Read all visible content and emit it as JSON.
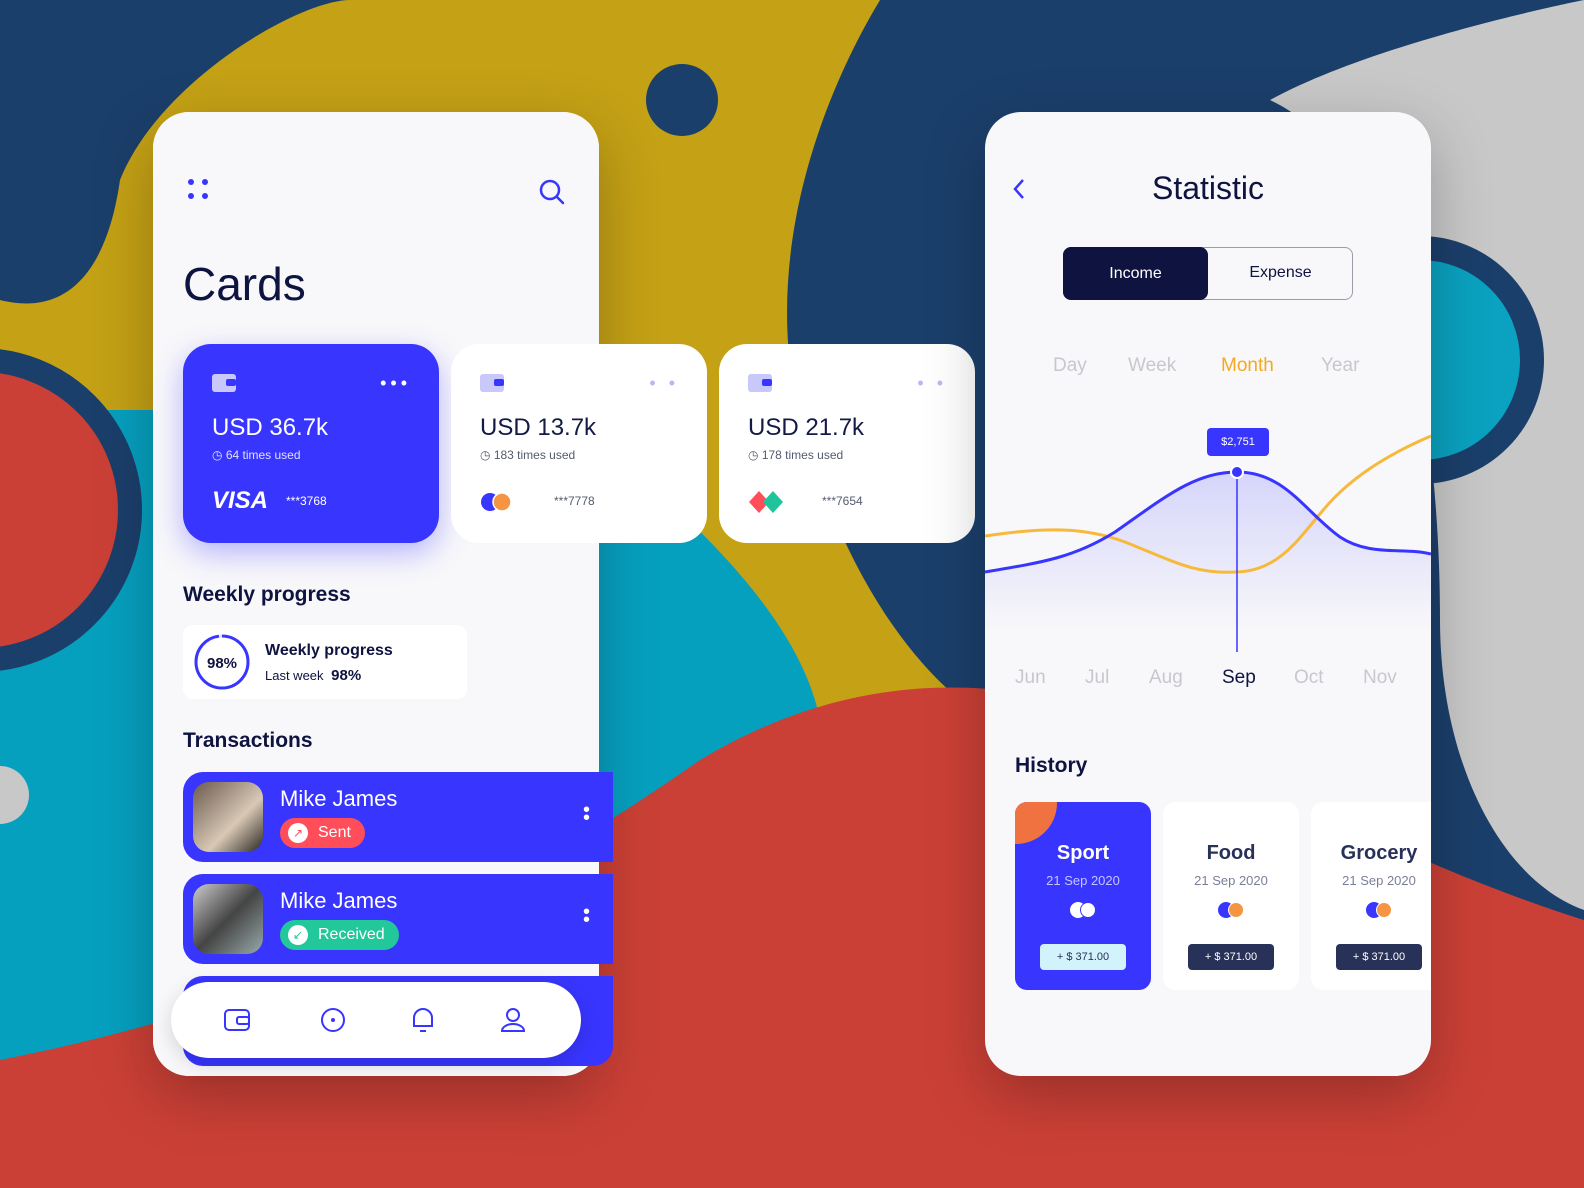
{
  "colors": {
    "accent": "#3835ff",
    "navy": "#0e1340",
    "orange": "#f6a821",
    "sent": "#ff4d5a",
    "received": "#22c79a"
  },
  "cards_screen": {
    "menu_icon": "grid-dots-icon",
    "search_icon": "search-icon",
    "title": "Cards",
    "cards": [
      {
        "amount": "USD 36.7k",
        "used": "64 times used",
        "brand": "VISA",
        "number": "***3768"
      },
      {
        "amount": "USD 13.7k",
        "used": "183 times used",
        "brand": "mastercard",
        "number": "***7778"
      },
      {
        "amount": "USD 21.7k",
        "used": "178 times used",
        "brand": "diamond",
        "number": "***7654"
      }
    ],
    "weekly": {
      "heading": "Weekly progress",
      "ring_label": "98%",
      "progress_percent": 98,
      "title": "Weekly progress",
      "sub": "Last week",
      "value": "98%"
    },
    "transactions": {
      "heading": "Transactions",
      "items": [
        {
          "name": "Mike James",
          "status": "Sent"
        },
        {
          "name": "Mike James",
          "status": "Received"
        }
      ]
    },
    "nav": [
      "wallet-icon",
      "compass-icon",
      "bell-icon",
      "user-icon"
    ]
  },
  "stat_screen": {
    "title": "Statistic",
    "toggle": {
      "options": [
        "Income",
        "Expense"
      ],
      "selected": "Income"
    },
    "periods": [
      "Day",
      "Week",
      "Month",
      "Year"
    ],
    "selected_period": "Month",
    "history": {
      "heading": "History",
      "items": [
        {
          "title": "Sport",
          "date": "21 Sep 2020",
          "amount": "+ $ 371.00"
        },
        {
          "title": "Food",
          "date": "21 Sep 2020",
          "amount": "+ $ 371.00"
        },
        {
          "title": "Grocery",
          "date": "21 Sep 2020",
          "amount": "+ $ 371.00"
        }
      ]
    }
  },
  "chart_data": {
    "type": "line",
    "categories": [
      "Jun",
      "Jul",
      "Aug",
      "Sep",
      "Oct",
      "Nov"
    ],
    "selected": "Sep",
    "tooltip": "$2,751",
    "series_colors": [
      "#3835ff",
      "#f6b93b"
    ]
  }
}
